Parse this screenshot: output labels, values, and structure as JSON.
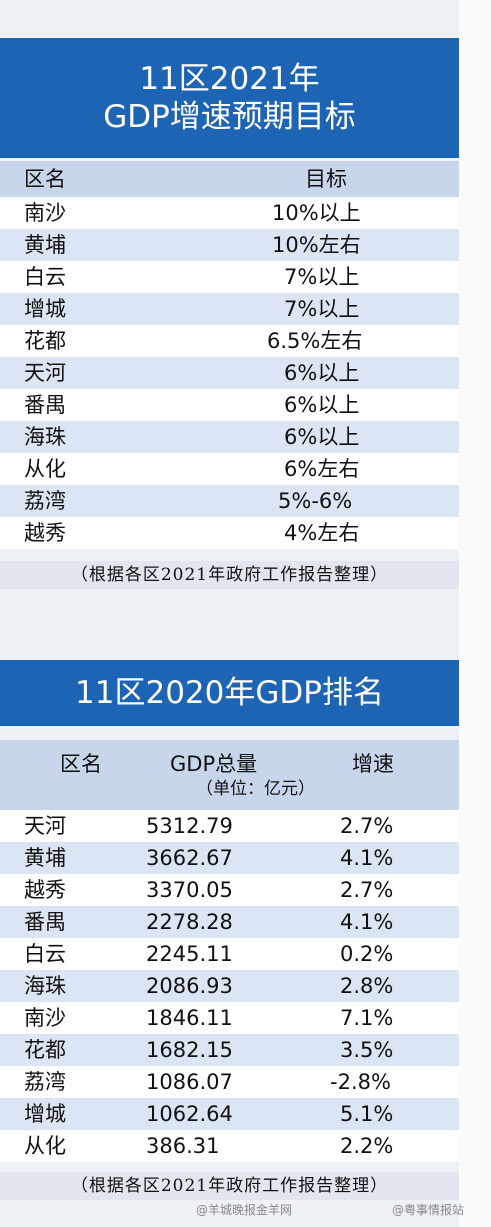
{
  "table1": {
    "title_line1": "11区2021年",
    "title_line2": "GDP增速预期目标",
    "header": {
      "district": "区名",
      "target": "目标"
    },
    "rows": [
      {
        "district": "南沙",
        "target": "10%以上"
      },
      {
        "district": "黄埔",
        "target": "10%左右"
      },
      {
        "district": "白云",
        "target": "7%以上"
      },
      {
        "district": "增城",
        "target": "7%以上"
      },
      {
        "district": "花都",
        "target": "6.5%左右"
      },
      {
        "district": "天河",
        "target": "6%以上"
      },
      {
        "district": "番禺",
        "target": "6%以上"
      },
      {
        "district": "海珠",
        "target": "6%以上"
      },
      {
        "district": "从化",
        "target": "6%左右"
      },
      {
        "district": "荔湾",
        "target": "5%-6%"
      },
      {
        "district": "越秀",
        "target": "4%左右"
      }
    ],
    "note": "（根据各区2021年政府工作报告整理）"
  },
  "table2": {
    "title": "11区2020年GDP排名",
    "header": {
      "district": "区名",
      "gdp": "GDP总量",
      "unit": "（单位：亿元）",
      "growth": "增速"
    },
    "rows": [
      {
        "district": "天河",
        "gdp": "5312.79",
        "growth": "2.7%"
      },
      {
        "district": "黄埔",
        "gdp": "3662.67",
        "growth": "4.1%"
      },
      {
        "district": "越秀",
        "gdp": "3370.05",
        "growth": "2.7%"
      },
      {
        "district": "番禺",
        "gdp": "2278.28",
        "growth": "4.1%"
      },
      {
        "district": "白云",
        "gdp": "2245.11",
        "growth": "0.2%"
      },
      {
        "district": "海珠",
        "gdp": "2086.93",
        "growth": "2.8%"
      },
      {
        "district": "南沙",
        "gdp": "1846.11",
        "growth": "7.1%"
      },
      {
        "district": "花都",
        "gdp": "1682.15",
        "growth": "3.5%"
      },
      {
        "district": "荔湾",
        "gdp": "1086.07",
        "growth": "-2.8%"
      },
      {
        "district": "增城",
        "gdp": "1062.64",
        "growth": "5.1%"
      },
      {
        "district": "从化",
        "gdp": "386.31",
        "growth": "2.2%"
      }
    ],
    "note": "（根据各区2021年政府工作报告整理）"
  },
  "watermarks": {
    "left": "@羊城晚报金羊网",
    "right": "@粤事情报站"
  }
}
